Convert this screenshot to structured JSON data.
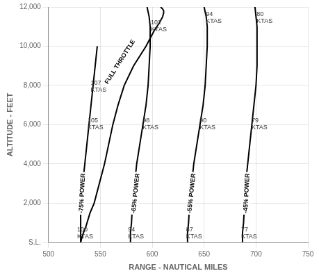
{
  "chart_data": {
    "type": "line",
    "xlabel": "RANGE - NAUTICAL MILES",
    "ylabel": "ALTITUDE - FEET",
    "xlim": [
      500,
      750
    ],
    "ylim": [
      0,
      12000
    ],
    "xticks": [
      500,
      550,
      600,
      650,
      700,
      750
    ],
    "yticks": [
      {
        "value": 0,
        "label": "S.L."
      },
      {
        "value": 2000,
        "label": "2,000"
      },
      {
        "value": 4000,
        "label": "4,000"
      },
      {
        "value": 6000,
        "label": "6,000"
      },
      {
        "value": 8000,
        "label": "8,000"
      },
      {
        "value": 10000,
        "label": "10,000"
      },
      {
        "value": 12000,
        "label": "12,000"
      }
    ],
    "grid": true,
    "color": "black",
    "series": [
      {
        "name": "FULL THROTTLE",
        "x": [
          531,
          533,
          536,
          540,
          544,
          549,
          554,
          558,
          562,
          567,
          573,
          582,
          594,
          602,
          607,
          610,
          611,
          611,
          610,
          609,
          608
        ],
        "values": [
          0,
          400,
          800,
          1500,
          2000,
          3000,
          4000,
          5000,
          6000,
          7000,
          8000,
          9000,
          10000,
          10800,
          11200,
          11500,
          11700,
          11800,
          11900,
          11950,
          12000
        ],
        "label_x": 569,
        "label_y": 9200
      },
      {
        "name": "-75% POWER",
        "x": [
          531,
          531,
          531,
          531,
          532,
          533,
          535,
          537,
          539,
          541,
          543,
          545,
          547
        ],
        "values": [
          0,
          500,
          1000,
          1500,
          2000,
          3000,
          4000,
          5000,
          6000,
          7000,
          8000,
          9000,
          10000
        ],
        "label_x": 532.5,
        "label_y": 2500
      },
      {
        "name": "-65% POWER",
        "x": [
          579,
          579,
          580,
          581,
          583,
          585,
          588,
          591,
          594,
          596,
          597,
          598,
          598,
          597,
          595
        ],
        "values": [
          0,
          500,
          1000,
          2000,
          3000,
          4000,
          5000,
          6000,
          7000,
          8000,
          9000,
          10000,
          11000,
          11500,
          12000
        ],
        "label_x": 584,
        "label_y": 2500
      },
      {
        "name": "-55% POWER",
        "x": [
          634,
          634,
          635,
          636,
          638,
          640,
          643,
          646,
          649,
          651,
          652,
          653,
          653,
          652,
          650
        ],
        "values": [
          0,
          500,
          1000,
          2000,
          3000,
          4000,
          5000,
          6000,
          7000,
          8000,
          9000,
          10000,
          11000,
          11500,
          12000
        ],
        "label_x": 638,
        "label_y": 2500
      },
      {
        "name": "-45% POWER",
        "x": [
          687,
          687,
          688,
          689,
          690,
          692,
          694,
          696,
          698,
          700,
          701,
          701,
          701,
          700,
          699
        ],
        "values": [
          0,
          500,
          1000,
          2000,
          3000,
          4000,
          5000,
          6000,
          7000,
          8000,
          9000,
          10000,
          11000,
          11500,
          12000
        ],
        "label_x": 691,
        "label_y": 2500
      }
    ],
    "annotations": [
      {
        "text": "100\nKTAS",
        "x": 527,
        "y": 150
      },
      {
        "text": "105\nKTAS",
        "x": 537,
        "y": 5700
      },
      {
        "text": "107\nKTAS",
        "x": 540,
        "y": 7600
      },
      {
        "text": "94\nKTAS",
        "x": 576,
        "y": 150
      },
      {
        "text": "98\nKTAS",
        "x": 590,
        "y": 5700
      },
      {
        "text": "102\nKTAS",
        "x": 598,
        "y": 10700
      },
      {
        "text": "87\nKTAS",
        "x": 632,
        "y": 150
      },
      {
        "text": "90\nKTAS",
        "x": 645,
        "y": 5700
      },
      {
        "text": "94\nKTAS",
        "x": 651,
        "y": 11100
      },
      {
        "text": "77\nKTAS",
        "x": 685,
        "y": 150
      },
      {
        "text": "79\nKTAS",
        "x": 695,
        "y": 5700
      },
      {
        "text": "80\nKTAS",
        "x": 700,
        "y": 11100
      }
    ]
  }
}
